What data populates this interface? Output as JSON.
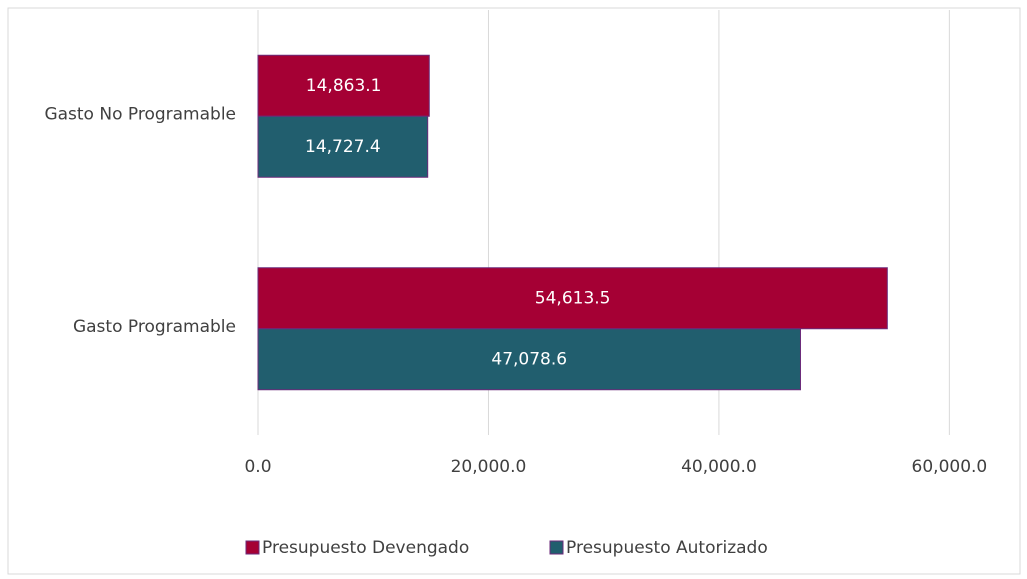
{
  "chart_data": {
    "type": "hbar",
    "categories": [
      "Gasto No Programable",
      "Gasto Programable"
    ],
    "series": [
      {
        "name": "Presupuesto Devengado",
        "color": "#a50034",
        "values": [
          14863.1,
          54613.5
        ],
        "value_labels": [
          "14,863.1",
          "54,613.5"
        ]
      },
      {
        "name": "Presupuesto Autorizado",
        "color": "#215e6e",
        "values": [
          14727.4,
          47078.6
        ],
        "value_labels": [
          "14,727.4",
          "47,078.6"
        ]
      }
    ],
    "xlim": [
      0,
      65000
    ],
    "xticks": [
      {
        "value": 0,
        "label": "0.0"
      },
      {
        "value": 20000,
        "label": "20,000.0"
      },
      {
        "value": 40000,
        "label": "40,000.0"
      },
      {
        "value": 60000,
        "label": "60,000.0"
      }
    ],
    "grid": true,
    "legend": "bottom"
  }
}
